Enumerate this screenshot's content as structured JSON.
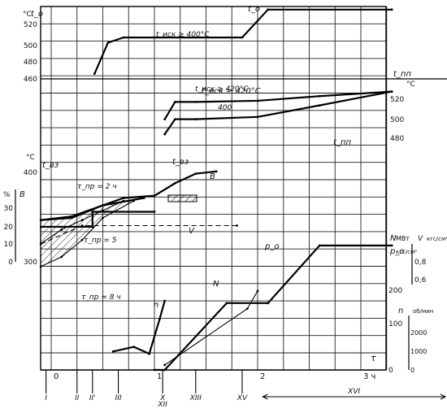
{
  "chart_data": {
    "type": "line",
    "title": "",
    "x_axis": {
      "label": "τ",
      "unit": "ч",
      "ticks": [
        {
          "value": 0,
          "label": "0"
        },
        {
          "value": 1,
          "label": "1"
        },
        {
          "value": 2,
          "label": "2"
        },
        {
          "value": 3,
          "label": "3 ч"
        }
      ],
      "range": [
        -0.25,
        3.3
      ],
      "markers": [
        {
          "label": "I",
          "x": -0.05
        },
        {
          "label": "II",
          "x": 0.25
        },
        {
          "label": "II'",
          "x": 0.4
        },
        {
          "label": "III",
          "x": 0.65
        },
        {
          "label": "X",
          "x": 1.08
        },
        {
          "label": "XII",
          "x": 1.08
        },
        {
          "label": "XIII",
          "x": 1.4
        },
        {
          "label": "XV",
          "x": 1.85
        }
      ],
      "span_label": {
        "label": "XVI",
        "from": 2.05,
        "to": 3.3
      }
    },
    "left_axes": [
      {
        "id": "to",
        "label": "t_o",
        "unit": "°C",
        "ticks": [
          "520",
          "500",
          "480",
          "460"
        ],
        "range": [
          460,
          530
        ]
      },
      {
        "id": "tvz",
        "label": "t_вз",
        "unit": "°C",
        "ticks": [
          "400",
          "300"
        ],
        "range": [
          300,
          400
        ]
      },
      {
        "id": "B",
        "label": "B",
        "unit": "%",
        "ticks": [
          "30",
          "20",
          "10",
          "0"
        ],
        "range": [
          0,
          40
        ]
      }
    ],
    "right_axes": [
      {
        "id": "tpp",
        "label": "t_пп",
        "unit": "°C",
        "ticks": [
          "520",
          "500",
          "480"
        ],
        "range": [
          480,
          530
        ]
      },
      {
        "id": "N",
        "label": "N",
        "unit": "МВт",
        "ticks": [
          "200",
          "100",
          "0"
        ],
        "range": [
          0,
          300
        ]
      },
      {
        "id": "V",
        "label": "V",
        "unit": "кгс/см²",
        "ticks": [
          "0,8",
          "0,6"
        ],
        "range": [
          0.6,
          0.9
        ]
      },
      {
        "id": "p",
        "label": "p_o",
        "unit": "кгс/см²",
        "ticks": [],
        "range": [
          0,
          140
        ]
      },
      {
        "id": "n",
        "label": "n",
        "unit": "об/мин",
        "ticks": [
          "2000",
          "1000",
          "0"
        ],
        "range": [
          0,
          3000
        ]
      }
    ],
    "annotations": [
      {
        "text": "t_иск ≥ 400°C",
        "near": "to"
      },
      {
        "text": "t_иск ≥ 420°C",
        "near": "tpp"
      },
      {
        "text": "400",
        "near": "tpp"
      },
      {
        "text": "τ_пр = 2 ч"
      },
      {
        "text": "τ_пр = 5"
      },
      {
        "text": "τ_пр ≈ 8 ч"
      }
    ],
    "series": [
      {
        "name": "t_o",
        "axis": "to",
        "x": [
          0.42,
          0.55,
          0.7,
          1.0,
          1.4,
          1.85,
          2.1,
          3.3
        ],
        "y": [
          465,
          495,
          500,
          500,
          500,
          500,
          527,
          527
        ]
      },
      {
        "name": "t_иск ≥ 420°C",
        "axis": "tpp",
        "x": [
          1.1,
          1.2,
          1.4,
          2.0,
          2.6,
          3.3
        ],
        "y": [
          495,
          510,
          510,
          511,
          515,
          519
        ]
      },
      {
        "name": "t_пп",
        "axis": "tpp",
        "x": [
          1.1,
          1.2,
          1.4,
          2.0,
          2.6,
          3.3
        ],
        "y": [
          482,
          495,
          495,
          497,
          507,
          519
        ]
      },
      {
        "name": "t_вз",
        "axis": "tvz",
        "x": [
          -0.1,
          0.2,
          0.5,
          0.7,
          1.0,
          1.2,
          1.4,
          1.6
        ],
        "y": [
          332,
          335,
          352,
          362,
          365,
          382,
          395,
          398
        ]
      },
      {
        "name": "τ_пр = 2 ч",
        "axis": "tvz",
        "x": [
          -0.1,
          0.2,
          0.5,
          0.9
        ],
        "y": [
          332,
          337,
          352,
          362
        ]
      },
      {
        "name": "τ_пр = 5",
        "axis": "tvz",
        "x": [
          -0.1,
          0.1,
          0.3,
          0.5,
          0.7
        ],
        "y": [
          300,
          319,
          332,
          345,
          358
        ]
      },
      {
        "name": "τ_пр ≈ 8 ч",
        "axis": "tvz",
        "x": [
          -0.1,
          0.1,
          0.3,
          0.5,
          0.8
        ],
        "y": [
          269,
          282,
          305,
          335,
          358
        ]
      },
      {
        "name": "B",
        "axis": "B",
        "x": [
          -0.1,
          0.4,
          0.4,
          1.0
        ],
        "y": [
          21,
          21,
          30,
          30
        ]
      },
      {
        "name": "V",
        "axis": "V",
        "x": [
          -0.1,
          0.3,
          1.8
        ],
        "y": [
          0.7,
          0.85,
          0.85
        ]
      },
      {
        "name": "N",
        "axis": "N",
        "x": [
          1.0,
          1.1,
          1.7,
          2.0,
          2.1,
          2.6,
          3.3
        ],
        "y": [
          0,
          0,
          145,
          145,
          145,
          270,
          270
        ]
      },
      {
        "name": "p_o",
        "axis": "p",
        "x": [
          1.1,
          1.9,
          2.0
        ],
        "y": [
          5,
          62,
          80
        ]
      },
      {
        "name": "n",
        "axis": "n",
        "x": [
          0.6,
          0.8,
          0.95,
          1.05,
          1.1
        ],
        "y": [
          800,
          1000,
          700,
          2200,
          3000
        ]
      }
    ],
    "grid": true
  }
}
